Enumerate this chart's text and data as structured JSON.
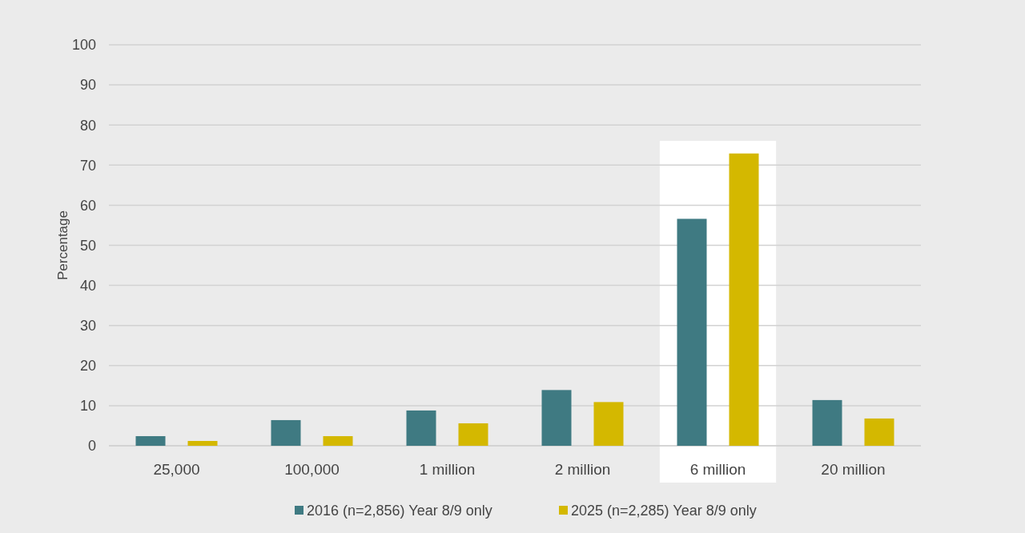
{
  "chart_data": {
    "type": "bar",
    "ylabel": "Percentage",
    "categories": [
      "25,000",
      "100,000",
      "1 million",
      "2 million",
      "6 million",
      "20 million"
    ],
    "series": [
      {
        "name": "2016 (n=2,856) Year 8/9 only",
        "color": "#3f7a82",
        "values": [
          2.4,
          6.4,
          8.8,
          13.9,
          56.6,
          11.4
        ]
      },
      {
        "name": "2025 (n=2,285) Year 8/9 only",
        "color": "#d4b800",
        "values": [
          1.2,
          2.4,
          5.6,
          10.9,
          72.9,
          6.8
        ]
      }
    ],
    "ylim": [
      0,
      100
    ],
    "yticks": [
      0,
      10,
      20,
      30,
      40,
      50,
      60,
      70,
      80,
      90,
      100
    ],
    "grid": "y",
    "legend": "bottom",
    "bands": [
      {
        "axis": "x",
        "from": "6 million",
        "to": "6 million",
        "color": "#ffffff"
      }
    ]
  }
}
